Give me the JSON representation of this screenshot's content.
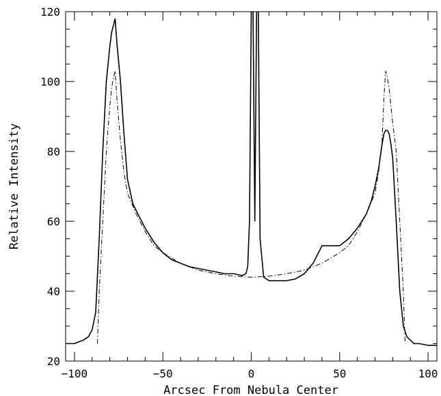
{
  "chart_data": {
    "type": "line",
    "title": "",
    "xlabel": "Arcsec From Nebula Center",
    "ylabel": "Relative Intensity",
    "xlim": [
      -105,
      105
    ],
    "ylim": [
      20,
      120
    ],
    "grid": false,
    "x_ticks": [
      -100,
      -50,
      0,
      50,
      100
    ],
    "y_ticks": [
      20,
      40,
      60,
      80,
      100,
      120
    ],
    "series": [
      {
        "style": "solid",
        "x": [
          -105,
          -100,
          -95,
          -92,
          -90,
          -88,
          -86,
          -84,
          -82,
          -80,
          -79,
          -78,
          -77,
          -76,
          -74,
          -72,
          -70,
          -67,
          -64,
          -60,
          -55,
          -50,
          -45,
          -40,
          -35,
          -30,
          -25,
          -20,
          -15,
          -10,
          -5,
          -3,
          -2,
          -1,
          0,
          1,
          2,
          3,
          4,
          5,
          7,
          10,
          15,
          20,
          25,
          30,
          35,
          38,
          40,
          45,
          50,
          55,
          60,
          65,
          68,
          70,
          72,
          74,
          75,
          76,
          77,
          78,
          79,
          80,
          82,
          84,
          86,
          88,
          90,
          92,
          95,
          100,
          105
        ],
        "y": [
          25,
          25,
          26,
          27,
          29,
          34,
          55,
          80,
          100,
          110,
          114,
          116,
          118,
          111,
          100,
          85,
          72,
          65,
          62,
          58,
          54,
          51,
          49,
          48,
          47,
          46.5,
          46,
          45.5,
          45,
          45,
          44.5,
          45,
          47,
          60,
          120,
          120,
          60,
          120,
          120,
          55,
          44,
          43,
          43,
          43,
          43.5,
          45,
          48,
          51,
          53,
          53,
          53,
          55,
          58,
          62,
          66,
          70,
          75,
          82,
          85,
          86,
          86,
          85,
          82,
          78,
          60,
          40,
          30,
          27,
          26,
          25,
          25,
          24.5,
          24.5
        ]
      },
      {
        "style": "dashdot",
        "x": [
          -87,
          -86,
          -84,
          -82,
          -80,
          -79,
          -78,
          -77,
          -76,
          -74,
          -72,
          -70,
          -65,
          -60,
          -55,
          -50,
          -40,
          -30,
          -20,
          -10,
          0,
          10,
          20,
          30,
          40,
          50,
          55,
          60,
          65,
          70,
          72,
          74,
          75,
          76,
          77,
          78,
          79,
          80,
          82,
          84,
          86,
          87
        ],
        "y": [
          25,
          40,
          60,
          80,
          93,
          98,
          101,
          103,
          95,
          83,
          74,
          68,
          62,
          57,
          53,
          51,
          48,
          46,
          45,
          44.3,
          44,
          44.3,
          45,
          46,
          48,
          51,
          53,
          57,
          62,
          68,
          74,
          83,
          95,
          103,
          101,
          98,
          93,
          88,
          80,
          60,
          40,
          25
        ]
      }
    ]
  }
}
